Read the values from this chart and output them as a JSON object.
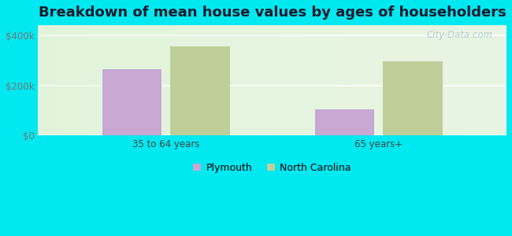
{
  "title": "Breakdown of mean house values by ages of householders",
  "categories": [
    "35 to 64 years",
    "65 years+"
  ],
  "series": {
    "Plymouth": [
      265000,
      105000
    ],
    "North Carolina": [
      355000,
      295000
    ]
  },
  "bar_colors": {
    "Plymouth": "#c9a8d4",
    "North Carolina": "#bfcf9a"
  },
  "ylim": [
    0,
    440000
  ],
  "ytick_vals": [
    0,
    200000,
    400000
  ],
  "ytick_labels": [
    "$0",
    "$200k",
    "$400k"
  ],
  "background_color": "#00e8f0",
  "plot_bg": "#e8f5e2",
  "bar_width": 0.28,
  "title_fontsize": 13,
  "tick_fontsize": 8.5,
  "legend_fontsize": 9,
  "watermark": "City-Data.com"
}
